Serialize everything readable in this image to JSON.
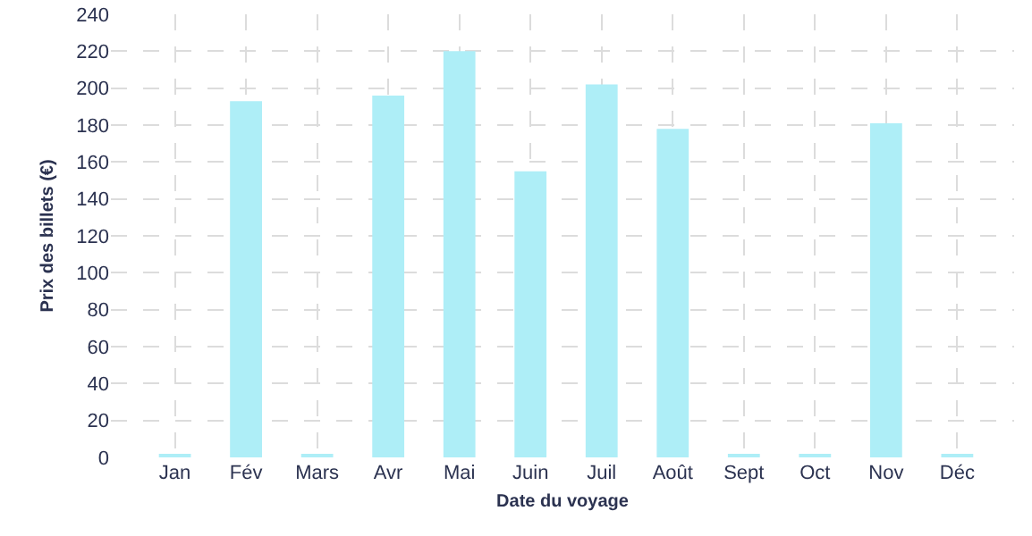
{
  "chart_data": {
    "type": "bar",
    "xlabel": "Date du voyage",
    "ylabel": "Prix des billets (€)",
    "categories": [
      "Jan",
      "Fév",
      "Mars",
      "Avr",
      "Mai",
      "Juin",
      "Juil",
      "Août",
      "Sept",
      "Oct",
      "Nov",
      "Déc"
    ],
    "values": [
      1,
      193,
      1,
      196,
      220,
      155,
      202,
      178,
      1,
      1,
      181,
      1
    ],
    "color": "#aeeef7",
    "ylim": [
      0,
      240
    ],
    "yticks": [
      0,
      20,
      40,
      60,
      80,
      100,
      120,
      140,
      160,
      180,
      200,
      220,
      240
    ],
    "grid": true
  }
}
